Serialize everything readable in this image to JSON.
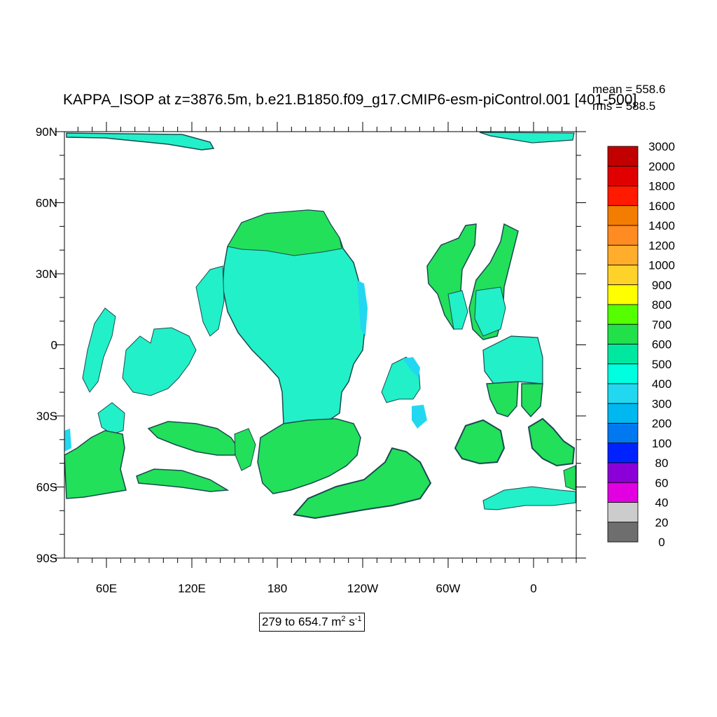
{
  "header": {
    "title": "KAPPA_ISOP at z=3876.5m, b.e21.B1850.f09_g17.CMIP6-esm-piControl.001 [401-500]",
    "mean_text": "mean = 558.6",
    "rms_text": "rms = 588.5"
  },
  "range": {
    "text": "279 to 654.7 m",
    "exp1": "2",
    "unit2": " s",
    "exp2": "-1"
  },
  "axes": {
    "y_ticks": [
      "90N",
      "60N",
      "30N",
      "0",
      "30S",
      "60S",
      "90S"
    ],
    "x_ticks": [
      "60E",
      "120E",
      "180",
      "120W",
      "60W",
      "0"
    ]
  },
  "colorbar": {
    "levels": [
      "3000",
      "2000",
      "1800",
      "1600",
      "1400",
      "1200",
      "1000",
      "900",
      "800",
      "700",
      "600",
      "500",
      "400",
      "300",
      "200",
      "100",
      "80",
      "60",
      "40",
      "20",
      "0"
    ],
    "colors": [
      "#c20000",
      "#e00000",
      "#ff1a00",
      "#f27d00",
      "#ff8c22",
      "#ffad2b",
      "#ffd22a",
      "#ffff00",
      "#55ff00",
      "#22e04a",
      "#00e8a0",
      "#00ffe0",
      "#22d8f0",
      "#00b8f0",
      "#0078f0",
      "#0022ff",
      "#8c00d8",
      "#e000e0",
      "#cccccc",
      "#6e6e6e"
    ]
  },
  "fill_colors": {
    "green": "#22e05a",
    "aqua": "#22f0c8",
    "cyan": "#22d8f0",
    "outline": "#1a4a50"
  }
}
